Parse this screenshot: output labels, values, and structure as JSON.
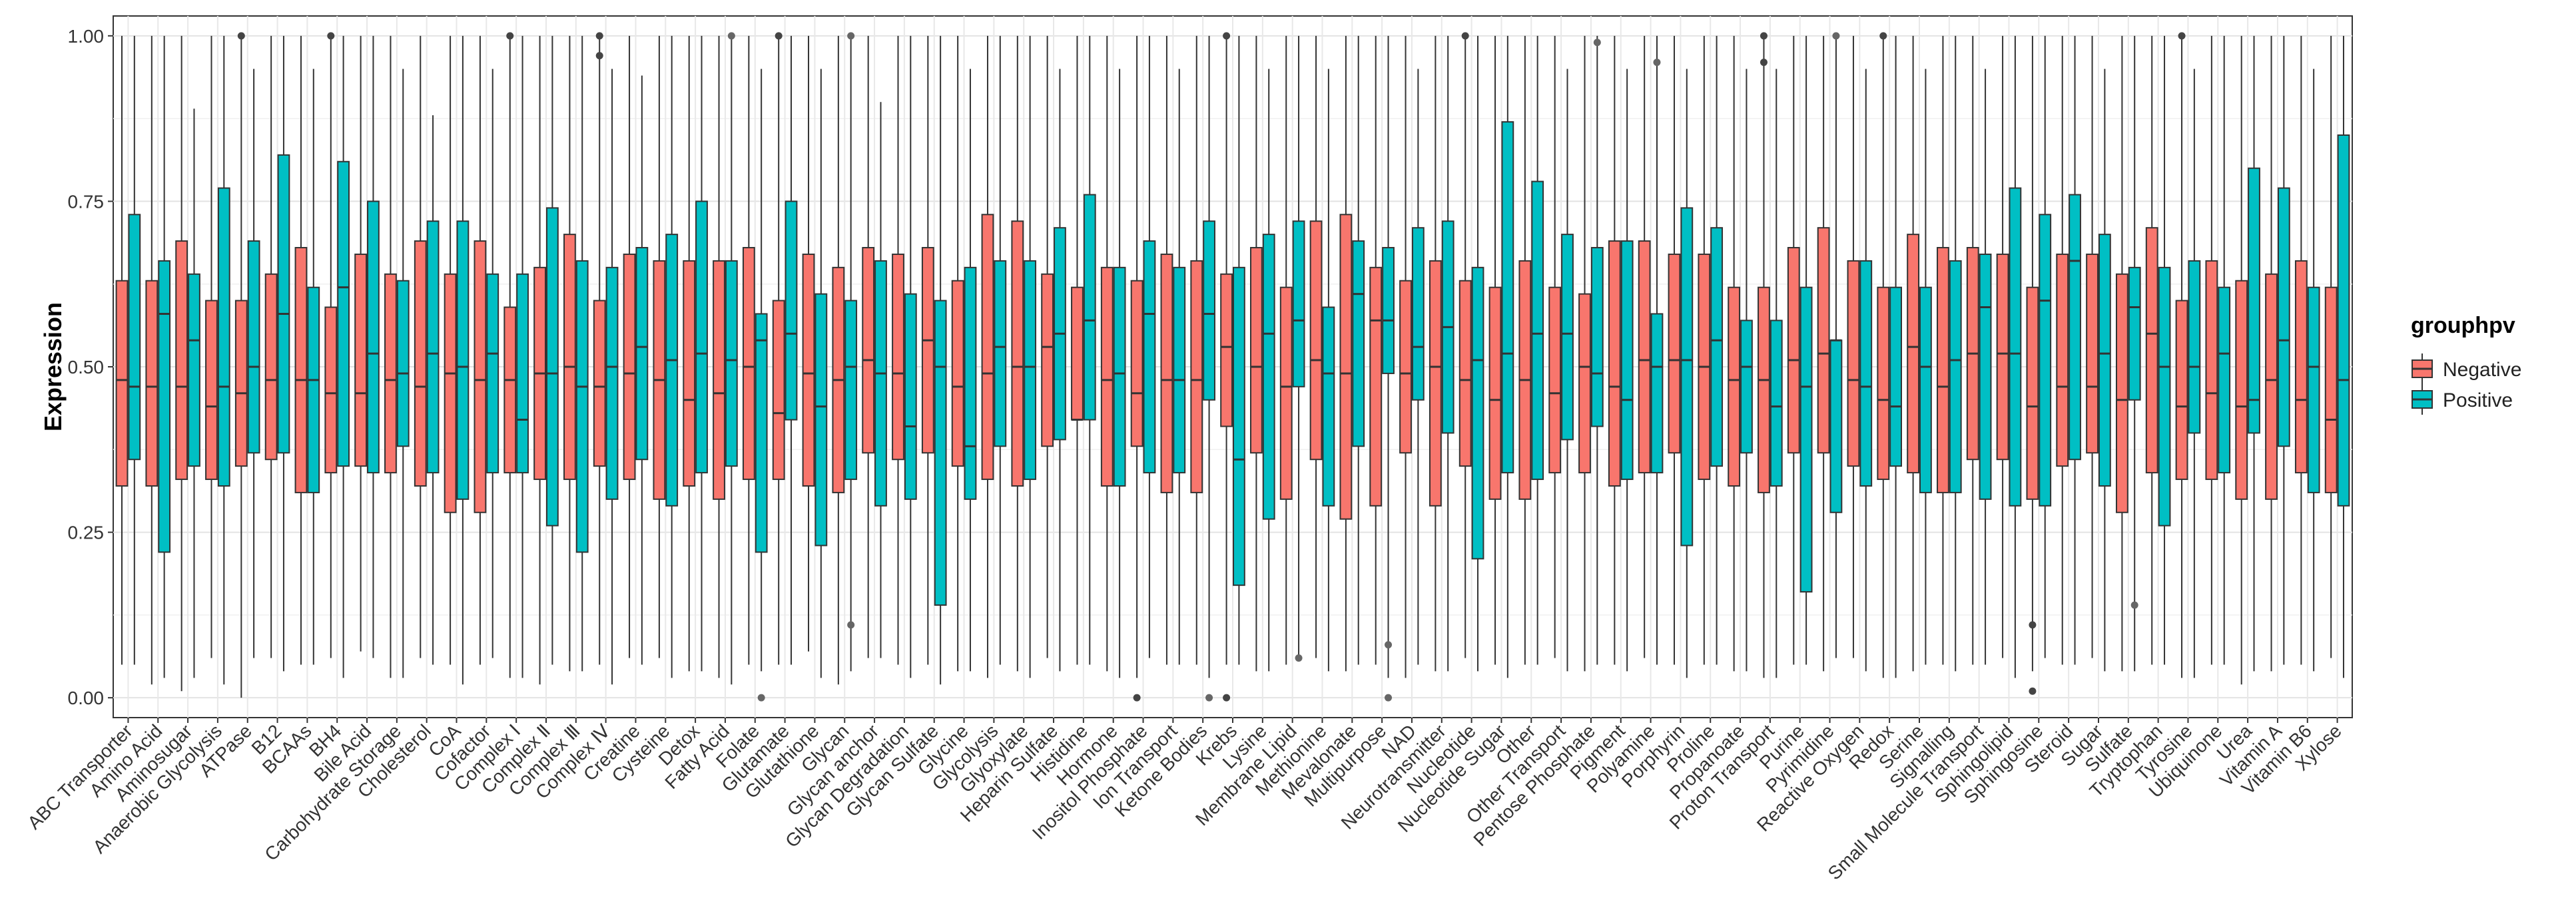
{
  "chart_data": {
    "type": "boxplot",
    "title": "",
    "xlabel": "",
    "ylabel": "Expression",
    "ylim": [
      -0.03,
      1.03
    ],
    "yticks": [
      "0.00",
      "0.25",
      "0.50",
      "0.75",
      "1.00"
    ],
    "legend": {
      "title": "grouphpv",
      "position": "right",
      "entries": [
        {
          "name": "Negative",
          "color": "#F8766D"
        },
        {
          "name": "Positive",
          "color": "#00BFC4"
        }
      ]
    },
    "categories": [
      "ABC Transporter",
      "Amino Acid",
      "Aminosugar",
      "Anaerobic Glycolysis",
      "ATPase",
      "B12",
      "BCAAs",
      "BH4",
      "Bile Acid",
      "Carbohydrate Storage",
      "Cholesterol",
      "CoA",
      "Cofactor",
      "Complex Ⅰ",
      "Complex Ⅱ",
      "Complex Ⅲ",
      "Complex Ⅳ",
      "Creatine",
      "Cysteine",
      "Detox",
      "Fatty Acid",
      "Folate",
      "Glutamate",
      "Glutathione",
      "Glycan",
      "Glycan anchor",
      "Glycan Degradation",
      "Glycan Sulfate",
      "Glycine",
      "Glycolysis",
      "Glyoxylate",
      "Heparin Sulfate",
      "Histidine",
      "Hormone",
      "Inositol Phosphate",
      "Ion Transport",
      "Ketone Bodies",
      "Krebs",
      "Lysine",
      "Membrane Lipid",
      "Methionine",
      "Mevalonate",
      "Multipurpose",
      "NAD",
      "Neurotransmitter",
      "Nucleotide",
      "Nucleotide Sugar",
      "Other",
      "Other Transport",
      "Pentose Phosphate",
      "Pigment",
      "Polyamine",
      "Porphyrin",
      "Proline",
      "Propanoate",
      "Proton Transport",
      "Purine",
      "Pyrimidine",
      "Reactive Oxygen",
      "Redox",
      "Serine",
      "Signalling",
      "Small Molecule Transport",
      "Sphingolipid",
      "Sphingosine",
      "Steroid",
      "Sugar",
      "Sulfate",
      "Tryptophan",
      "Tyrosine",
      "Ubiquinone",
      "Urea",
      "Vitamin A",
      "Vitamin B6",
      "Xylose"
    ],
    "series": [
      {
        "name": "Negative",
        "q1": [
          0.32,
          0.32,
          0.33,
          0.33,
          0.35,
          0.36,
          0.31,
          0.34,
          0.35,
          0.34,
          0.32,
          0.28,
          0.28,
          0.34,
          0.33,
          0.33,
          0.35,
          0.33,
          0.3,
          0.32,
          0.3,
          0.33,
          0.33,
          0.32,
          0.31,
          0.37,
          0.36,
          0.37,
          0.35,
          0.33,
          0.32,
          0.38,
          0.42,
          0.32,
          0.38,
          0.31,
          0.31,
          0.41,
          0.37,
          0.3,
          0.36,
          0.27,
          0.29,
          0.37,
          0.29,
          0.35,
          0.3,
          0.3,
          0.34,
          0.34,
          0.32,
          0.34,
          0.37,
          0.33,
          0.32,
          0.31,
          0.37,
          0.37,
          0.35,
          0.33,
          0.34,
          0.31,
          0.36,
          0.36,
          0.3,
          0.35,
          0.37,
          0.28,
          0.34,
          0.33,
          0.33,
          0.3,
          0.3,
          0.34,
          0.31
        ],
        "median": [
          0.48,
          0.47,
          0.47,
          0.44,
          0.46,
          0.48,
          0.48,
          0.46,
          0.46,
          0.48,
          0.47,
          0.49,
          0.48,
          0.48,
          0.49,
          0.5,
          0.47,
          0.49,
          0.48,
          0.45,
          0.46,
          0.5,
          0.43,
          0.49,
          0.48,
          0.51,
          0.49,
          0.54,
          0.47,
          0.49,
          0.5,
          0.53,
          0.42,
          0.48,
          0.46,
          0.48,
          0.48,
          0.53,
          0.5,
          0.47,
          0.51,
          0.49,
          0.57,
          0.49,
          0.5,
          0.48,
          0.45,
          0.48,
          0.46,
          0.5,
          0.47,
          0.51,
          0.51,
          0.5,
          0.48,
          0.48,
          0.51,
          0.52,
          0.48,
          0.45,
          0.53,
          0.47,
          0.52,
          0.52,
          0.44,
          0.47,
          0.47,
          0.45,
          0.55,
          0.44,
          0.46,
          0.44,
          0.48,
          0.45,
          0.42
        ],
        "q3": [
          0.63,
          0.63,
          0.69,
          0.6,
          0.6,
          0.64,
          0.68,
          0.59,
          0.67,
          0.64,
          0.69,
          0.64,
          0.69,
          0.59,
          0.65,
          0.7,
          0.6,
          0.67,
          0.66,
          0.66,
          0.66,
          0.68,
          0.6,
          0.67,
          0.65,
          0.68,
          0.67,
          0.68,
          0.63,
          0.73,
          0.72,
          0.64,
          0.62,
          0.65,
          0.63,
          0.67,
          0.66,
          0.64,
          0.68,
          0.62,
          0.72,
          0.73,
          0.65,
          0.63,
          0.66,
          0.63,
          0.62,
          0.66,
          0.62,
          0.61,
          0.69,
          0.69,
          0.67,
          0.67,
          0.62,
          0.62,
          0.68,
          0.71,
          0.66,
          0.62,
          0.7,
          0.68,
          0.68,
          0.67,
          0.62,
          0.67,
          0.67,
          0.64,
          0.71,
          0.6,
          0.66,
          0.63,
          0.64,
          0.66,
          0.62
        ],
        "whisker_low": [
          0.05,
          0.02,
          0.01,
          0.06,
          0.0,
          0.06,
          0.05,
          0.06,
          0.07,
          0.03,
          0.06,
          0.05,
          0.05,
          0.03,
          0.02,
          0.04,
          0.05,
          0.06,
          0.06,
          0.04,
          0.03,
          0.05,
          0.05,
          0.07,
          0.02,
          0.06,
          0.05,
          0.05,
          0.04,
          0.03,
          0.04,
          0.06,
          0.05,
          0.04,
          0.03,
          0.05,
          0.05,
          0.05,
          0.04,
          0.05,
          0.06,
          0.04,
          0.05,
          0.03,
          0.04,
          0.06,
          0.05,
          0.05,
          0.06,
          0.04,
          0.05,
          0.06,
          0.05,
          0.05,
          0.04,
          0.03,
          0.05,
          0.04,
          0.06,
          0.03,
          0.04,
          0.05,
          0.05,
          0.06,
          0.04,
          0.05,
          0.06,
          0.04,
          0.05,
          0.03,
          0.05,
          0.02,
          0.04,
          0.05,
          0.06
        ],
        "whisker_high": [
          1.0,
          1.0,
          1.0,
          1.0,
          1.0,
          1.0,
          1.0,
          1.0,
          1.0,
          1.0,
          1.0,
          1.0,
          1.0,
          1.0,
          1.0,
          1.0,
          1.0,
          1.0,
          1.0,
          1.0,
          1.0,
          1.0,
          1.0,
          1.0,
          1.0,
          1.0,
          1.0,
          1.0,
          1.0,
          1.0,
          1.0,
          1.0,
          1.0,
          1.0,
          1.0,
          1.0,
          1.0,
          1.0,
          1.0,
          1.0,
          1.0,
          1.0,
          1.0,
          1.0,
          1.0,
          1.0,
          1.0,
          1.0,
          1.0,
          1.0,
          1.0,
          1.0,
          1.0,
          1.0,
          1.0,
          1.0,
          1.0,
          1.0,
          1.0,
          1.0,
          1.0,
          1.0,
          1.0,
          1.0,
          1.0,
          1.0,
          1.0,
          1.0,
          1.0,
          1.0,
          1.0,
          1.0,
          1.0,
          1.0,
          1.0
        ],
        "outliers": [
          {
            "cat": "ATPase",
            "y": 1.0
          },
          {
            "cat": "BH4",
            "y": 1.0
          },
          {
            "cat": "Complex Ⅰ",
            "y": 1.0
          },
          {
            "cat": "Complex Ⅳ",
            "y": 1.0
          },
          {
            "cat": "Complex Ⅳ",
            "y": 0.97
          },
          {
            "cat": "Glutamate",
            "y": 1.0
          },
          {
            "cat": "Inositol Phosphate",
            "y": 0.0
          },
          {
            "cat": "Krebs",
            "y": 1.0
          },
          {
            "cat": "Krebs",
            "y": 0.0
          },
          {
            "cat": "Nucleotide",
            "y": 1.0
          },
          {
            "cat": "Proton Transport",
            "y": 1.0
          },
          {
            "cat": "Proton Transport",
            "y": 0.96
          },
          {
            "cat": "Redox",
            "y": 1.0
          },
          {
            "cat": "Sphingosine",
            "y": 0.11
          },
          {
            "cat": "Sphingosine",
            "y": 0.01
          },
          {
            "cat": "Tyrosine",
            "y": 1.0
          }
        ]
      },
      {
        "name": "Positive",
        "q1": [
          0.36,
          0.22,
          0.35,
          0.32,
          0.37,
          0.37,
          0.31,
          0.35,
          0.34,
          0.38,
          0.34,
          0.3,
          0.34,
          0.34,
          0.26,
          0.22,
          0.3,
          0.36,
          0.29,
          0.34,
          0.35,
          0.22,
          0.42,
          0.23,
          0.33,
          0.29,
          0.3,
          0.14,
          0.3,
          0.38,
          0.33,
          0.39,
          0.42,
          0.32,
          0.34,
          0.34,
          0.45,
          0.17,
          0.27,
          0.47,
          0.29,
          0.38,
          0.49,
          0.45,
          0.4,
          0.21,
          0.34,
          0.33,
          0.39,
          0.41,
          0.33,
          0.34,
          0.23,
          0.35,
          0.37,
          0.32,
          0.16,
          0.28,
          0.32,
          0.35,
          0.31,
          0.31,
          0.3,
          0.29,
          0.29,
          0.36,
          0.32,
          0.45,
          0.26,
          0.4,
          0.34,
          0.4,
          0.38,
          0.31,
          0.29
        ],
        "median": [
          0.47,
          0.58,
          0.54,
          0.47,
          0.5,
          0.58,
          0.48,
          0.62,
          0.52,
          0.49,
          0.52,
          0.5,
          0.52,
          0.42,
          0.49,
          0.47,
          0.5,
          0.53,
          0.51,
          0.52,
          0.51,
          0.54,
          0.55,
          0.44,
          0.5,
          0.49,
          0.41,
          0.5,
          0.38,
          0.53,
          0.5,
          0.55,
          0.57,
          0.49,
          0.58,
          0.48,
          0.58,
          0.36,
          0.55,
          0.57,
          0.49,
          0.61,
          0.57,
          0.53,
          0.56,
          0.51,
          0.52,
          0.55,
          0.55,
          0.49,
          0.45,
          0.5,
          0.51,
          0.54,
          0.5,
          0.44,
          0.47,
          0.54,
          0.47,
          0.44,
          0.5,
          0.51,
          0.59,
          0.52,
          0.6,
          0.66,
          0.52,
          0.59,
          0.5,
          0.5,
          0.52,
          0.45,
          0.54,
          0.5,
          0.48
        ],
        "q3": [
          0.73,
          0.66,
          0.64,
          0.77,
          0.69,
          0.82,
          0.62,
          0.81,
          0.75,
          0.63,
          0.72,
          0.72,
          0.64,
          0.64,
          0.74,
          0.66,
          0.65,
          0.68,
          0.7,
          0.75,
          0.66,
          0.58,
          0.75,
          0.61,
          0.6,
          0.66,
          0.61,
          0.6,
          0.65,
          0.66,
          0.66,
          0.71,
          0.76,
          0.65,
          0.69,
          0.65,
          0.72,
          0.65,
          0.7,
          0.72,
          0.59,
          0.69,
          0.68,
          0.71,
          0.72,
          0.65,
          0.87,
          0.78,
          0.7,
          0.68,
          0.69,
          0.58,
          0.74,
          0.71,
          0.57,
          0.57,
          0.62,
          0.54,
          0.66,
          0.62,
          0.62,
          0.66,
          0.67,
          0.77,
          0.73,
          0.76,
          0.7,
          0.65,
          0.65,
          0.66,
          0.62,
          0.8,
          0.77,
          0.62,
          0.85
        ],
        "whisker_low": [
          0.05,
          0.03,
          0.03,
          0.02,
          0.06,
          0.04,
          0.05,
          0.03,
          0.06,
          0.03,
          0.05,
          0.02,
          0.06,
          0.03,
          0.05,
          0.04,
          0.02,
          0.05,
          0.03,
          0.04,
          0.02,
          0.04,
          0.05,
          0.03,
          0.04,
          0.06,
          0.03,
          0.02,
          0.04,
          0.05,
          0.03,
          0.04,
          0.05,
          0.03,
          0.06,
          0.05,
          0.03,
          0.05,
          0.04,
          0.06,
          0.04,
          0.05,
          0.03,
          0.05,
          0.04,
          0.04,
          0.03,
          0.05,
          0.04,
          0.05,
          0.04,
          0.05,
          0.03,
          0.05,
          0.04,
          0.03,
          0.05,
          0.06,
          0.04,
          0.03,
          0.05,
          0.04,
          0.05,
          0.03,
          0.06,
          0.05,
          0.04,
          0.04,
          0.05,
          0.03,
          0.05,
          0.04,
          0.05,
          0.04,
          0.03
        ],
        "whisker_high": [
          1.0,
          1.0,
          0.89,
          1.0,
          0.95,
          1.0,
          0.95,
          1.0,
          1.0,
          0.95,
          0.88,
          1.0,
          0.95,
          1.0,
          1.0,
          1.0,
          0.95,
          0.94,
          1.0,
          1.0,
          1.0,
          0.95,
          1.0,
          0.95,
          1.0,
          0.9,
          1.0,
          1.0,
          0.95,
          1.0,
          1.0,
          0.95,
          1.0,
          0.95,
          1.0,
          0.95,
          1.0,
          1.0,
          0.95,
          1.0,
          0.95,
          1.0,
          1.0,
          0.95,
          1.0,
          1.0,
          1.0,
          1.0,
          0.95,
          1.0,
          0.95,
          1.0,
          0.95,
          1.0,
          0.95,
          0.95,
          1.0,
          1.0,
          0.95,
          1.0,
          0.95,
          1.0,
          0.95,
          1.0,
          1.0,
          1.0,
          0.95,
          1.0,
          1.0,
          0.95,
          1.0,
          1.0,
          1.0,
          0.95,
          1.0
        ],
        "outliers": [
          {
            "cat": "Fatty Acid",
            "y": 1.0
          },
          {
            "cat": "Glycan",
            "y": 1.0
          },
          {
            "cat": "Glycan",
            "y": 0.11
          },
          {
            "cat": "Folate",
            "y": 0.0
          },
          {
            "cat": "Ketone Bodies",
            "y": 0.0
          },
          {
            "cat": "Membrane Lipid",
            "y": 0.06
          },
          {
            "cat": "Multipurpose",
            "y": 0.08
          },
          {
            "cat": "Multipurpose",
            "y": 0.0
          },
          {
            "cat": "Pentose Phosphate",
            "y": 0.99
          },
          {
            "cat": "Polyamine",
            "y": 0.96
          },
          {
            "cat": "Pyrimidine",
            "y": 1.0
          },
          {
            "cat": "Sulfate",
            "y": 0.14
          }
        ]
      }
    ]
  }
}
